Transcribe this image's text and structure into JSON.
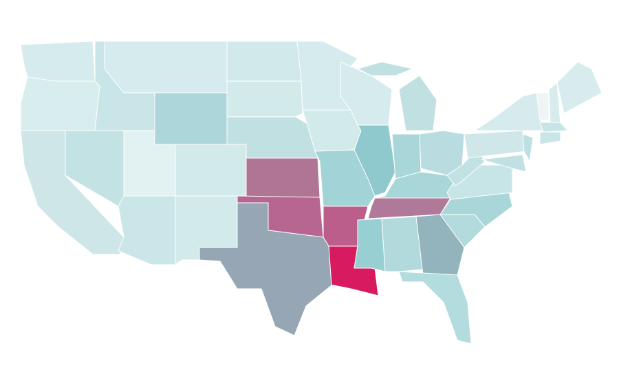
{
  "map": {
    "fills": {
      "WA": "#d6ebed",
      "OR": "#d8edee",
      "CA": "#cfe6e8",
      "NV": "#c3e2e4",
      "ID": "#c9e5e7",
      "MT": "#d6ebed",
      "WY": "#acd6d9",
      "UT": "#e2f1f2",
      "CO": "#d3eaeb",
      "AZ": "#cbe6e8",
      "NM": "#d3eaeb",
      "ND": "#d1e9eb",
      "SD": "#d3eaeb",
      "NE": "#c0e0e2",
      "KS": "#b07595",
      "OK": "#b66690",
      "TX": "#96a6b5",
      "MN": "#d6ebed",
      "IA": "#d3eaeb",
      "MO": "#a2d3d6",
      "AR": "#bb5e8b",
      "LA": "#d81b60",
      "WI": "#d6ebed",
      "IL": "#8fc9cd",
      "MI": "#c0e0e2",
      "IN": "#a8d6d9",
      "OH": "#b8dcdf",
      "KY": "#a8d6d9",
      "TN": "#b07999",
      "MS": "#98cfd2",
      "AL": "#b2dadd",
      "GA": "#94b4bd",
      "FL": "#b2dcde",
      "SC": "#b3dbdd",
      "NC": "#a8d6d9",
      "VA": "#c7e5e7",
      "WV": "#c2e1e3",
      "PA": "#cfe7e9",
      "NY": "#d6ebed",
      "NJ": "#bedfe2",
      "MD": "#c0e0e2",
      "VT": "#f0f4f5",
      "NH": "#d8eced",
      "ME": "#d8eced",
      "MA": "#c7e5e7",
      "CT": "#c9e5e7"
    }
  }
}
